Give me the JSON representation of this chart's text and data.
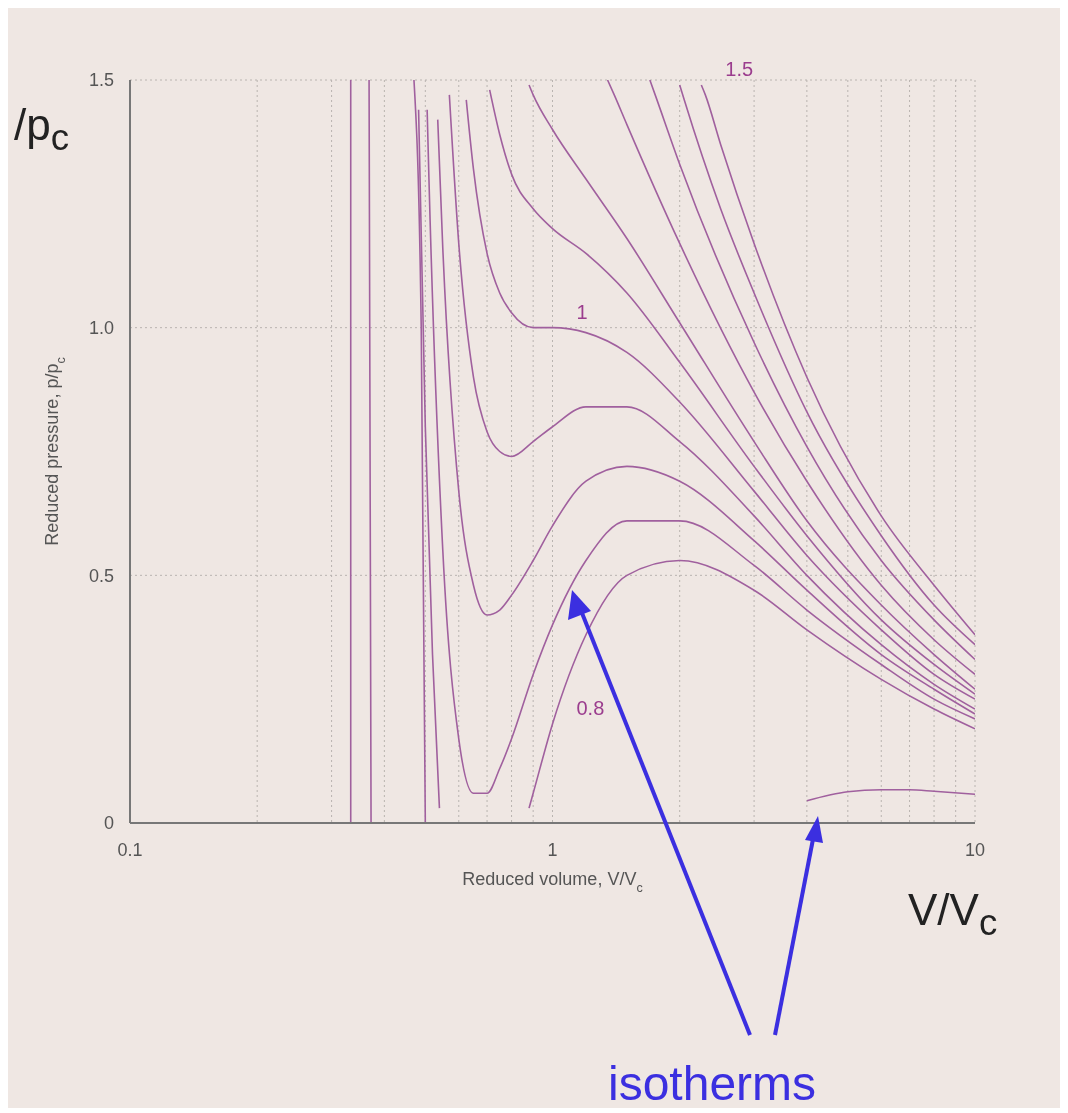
{
  "chart_data": {
    "type": "line",
    "xlabel": "Reduced volume, V/V$_{c}$",
    "ylabel": "Reduced pressure, p/p$_{c}$",
    "log": "x",
    "grid": true,
    "xlim": [
      0.1,
      10
    ],
    "xticks": [
      0.1,
      {
        "value": 0.2,
        "label": null
      },
      {
        "value": 0.3,
        "label": null
      },
      {
        "value": 0.4,
        "label": null
      },
      {
        "value": 0.5,
        "label": null
      },
      {
        "value": 0.6,
        "label": null
      },
      {
        "value": 0.7,
        "label": null
      },
      {
        "value": 0.8,
        "label": null
      },
      {
        "value": 0.9,
        "label": null
      },
      1,
      {
        "value": 2,
        "label": null
      },
      {
        "value": 3,
        "label": null
      },
      {
        "value": 4,
        "label": null
      },
      {
        "value": 5,
        "label": null
      },
      {
        "value": 6,
        "label": null
      },
      {
        "value": 7,
        "label": null
      },
      {
        "value": 8,
        "label": null
      },
      {
        "value": 9,
        "label": null
      },
      10
    ],
    "ylim": [
      0,
      1.5
    ],
    "yticks": [
      0,
      0.5,
      {
        "value": 1,
        "label": "1.0"
      },
      1.5
    ],
    "series": [
      {
        "color": "#a0609e",
        "x": [
          0.333,
          0.333
        ],
        "values": [
          0,
          1.5
        ]
      },
      {
        "color": "#a0609e",
        "x": [
          0.368,
          0.372,
          3.17,
          4,
          5,
          6,
          7,
          8,
          10
        ],
        "values": [
          1.5,
          0,
          null,
          0.045,
          0.063,
          0.067,
          0.067,
          0.064,
          0.058
        ]
      },
      {
        "color": "#a0609e",
        "x": [
          0.47,
          0.489,
          0.5
        ],
        "values": [
          1.5,
          1.0,
          0
        ]
      },
      {
        "name": "0.8",
        "color": "#a0609e",
        "x": [
          0.482,
          0.5,
          0.52,
          0.54,
          0.55,
          0.88,
          0.9,
          1,
          1.2,
          1.5,
          2,
          3,
          4,
          6,
          8,
          10
        ],
        "values": [
          1.44,
          0.8,
          0.34,
          0.03,
          null,
          0.03,
          0.06,
          0.2,
          0.38,
          0.5,
          0.53,
          0.47,
          0.39,
          0.29,
          0.23,
          0.19
        ]
      },
      {
        "color": "#a0609e",
        "x": [
          0.505,
          0.51,
          0.55,
          0.6,
          0.65,
          0.7,
          0.75,
          0.8,
          0.9,
          1,
          1.2,
          1.5,
          2,
          3,
          4,
          6,
          8,
          10
        ],
        "values": [
          1.44,
          1.3,
          0.55,
          0.17,
          0.06,
          0.06,
          0.11,
          0.17,
          0.3,
          0.4,
          0.53,
          0.61,
          0.61,
          0.52,
          0.43,
          0.32,
          0.25,
          0.21
        ]
      },
      {
        "color": "#a0609e",
        "x": [
          0.535,
          0.55,
          0.6,
          0.65,
          0.7,
          0.75,
          0.8,
          0.9,
          1,
          1.2,
          1.5,
          2,
          3,
          4,
          6,
          8,
          10
        ],
        "values": [
          1.42,
          1.16,
          0.67,
          0.48,
          0.42,
          0.43,
          0.46,
          0.53,
          0.6,
          0.69,
          0.72,
          0.69,
          0.57,
          0.47,
          0.34,
          0.27,
          0.22
        ]
      },
      {
        "color": "#a0609e",
        "x": [
          0.57,
          0.6,
          0.65,
          0.7,
          0.75,
          0.8,
          0.9,
          1,
          1.2,
          1.5,
          2,
          3,
          4,
          6,
          8,
          10
        ],
        "values": [
          1.47,
          1.17,
          0.9,
          0.79,
          0.75,
          0.74,
          0.77,
          0.8,
          0.84,
          0.84,
          0.77,
          0.62,
          0.5,
          0.36,
          0.28,
          0.23
        ]
      },
      {
        "name": "1",
        "color": "#a0609e",
        "x": [
          0.625,
          0.65,
          0.7,
          0.75,
          0.8,
          0.9,
          1,
          1.2,
          1.5,
          2,
          3,
          4,
          6,
          8,
          10
        ],
        "values": [
          1.46,
          1.32,
          1.15,
          1.07,
          1.03,
          1.0,
          1.0,
          0.99,
          0.95,
          0.85,
          0.67,
          0.54,
          0.39,
          0.3,
          0.25
        ]
      },
      {
        "color": "#a0609e",
        "x": [
          0.71,
          0.75,
          0.8,
          0.9,
          1,
          1.2,
          1.5,
          2,
          3,
          4,
          6,
          8,
          10
        ],
        "values": [
          1.48,
          1.39,
          1.31,
          1.24,
          1.2,
          1.15,
          1.07,
          0.93,
          0.72,
          0.58,
          0.41,
          0.32,
          0.26
        ]
      },
      {
        "color": "#a0609e",
        "x": [
          0.88,
          0.9,
          1,
          1.2,
          1.5,
          2,
          3,
          4,
          6,
          8,
          10
        ],
        "values": [
          1.49,
          1.47,
          1.4,
          1.3,
          1.18,
          1.01,
          0.77,
          0.61,
          0.44,
          0.34,
          0.27
        ]
      },
      {
        "color": "#a0609e",
        "x": [
          1.35,
          1.4,
          1.5,
          2,
          3,
          4,
          6,
          8,
          10
        ],
        "values": [
          1.5,
          1.47,
          1.41,
          1.17,
          0.87,
          0.69,
          0.48,
          0.37,
          0.3
        ]
      },
      {
        "color": "#a0609e",
        "x": [
          1.7,
          1.75,
          2,
          3,
          4,
          6,
          8,
          10
        ],
        "values": [
          1.5,
          1.47,
          1.33,
          0.97,
          0.76,
          0.53,
          0.41,
          0.33
        ]
      },
      {
        "color": "#a0609e",
        "x": [
          2,
          2.05,
          2.5,
          3,
          4,
          6,
          8,
          10
        ],
        "values": [
          1.49,
          1.46,
          1.24,
          1.07,
          0.83,
          0.58,
          0.44,
          0.36
        ]
      },
      {
        "name": "1.5",
        "color": "#a0609e",
        "x": [
          2.25,
          2.3,
          2.5,
          3,
          4,
          6,
          8,
          10
        ],
        "values": [
          1.49,
          1.47,
          1.37,
          1.17,
          0.9,
          0.62,
          0.48,
          0.38
        ]
      }
    ],
    "annotations": [
      "/p$_{c}$",
      "V/V$_{c}$",
      "isotherms"
    ]
  }
}
